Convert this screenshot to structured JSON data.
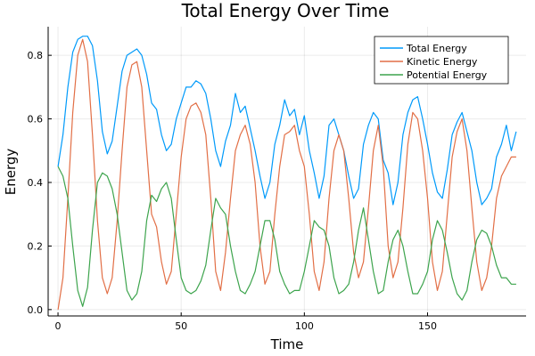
{
  "chart_data": {
    "type": "line",
    "title": "Total Energy Over Time",
    "xlabel": "Time",
    "ylabel": "Energy",
    "xlim": [
      -4,
      190
    ],
    "ylim": [
      -0.02,
      0.89
    ],
    "xticks": [
      0,
      50,
      100,
      150
    ],
    "yticks": [
      0.0,
      0.2,
      0.4,
      0.6,
      0.8
    ],
    "ytick_labels": [
      "0.0",
      "0.2",
      "0.4",
      "0.6",
      "0.8"
    ],
    "grid": true,
    "legend_position": "top-right",
    "x": [
      0,
      2,
      4,
      6,
      8,
      10,
      12,
      14,
      16,
      18,
      20,
      22,
      24,
      26,
      28,
      30,
      32,
      34,
      36,
      38,
      40,
      42,
      44,
      46,
      48,
      50,
      52,
      54,
      56,
      58,
      60,
      62,
      64,
      66,
      68,
      70,
      72,
      74,
      76,
      78,
      80,
      82,
      84,
      86,
      88,
      90,
      92,
      94,
      96,
      98,
      100,
      102,
      104,
      106,
      108,
      110,
      112,
      114,
      116,
      118,
      120,
      122,
      124,
      126,
      128,
      130,
      132,
      134,
      136,
      138,
      140,
      142,
      144,
      146,
      148,
      150,
      152,
      154,
      156,
      158,
      160,
      162,
      164,
      166,
      168,
      170,
      172,
      174,
      176,
      178,
      180,
      182,
      184,
      186
    ],
    "series": [
      {
        "name": "Total Energy",
        "color": "#009AFA",
        "values": [
          0.45,
          0.55,
          0.7,
          0.81,
          0.85,
          0.86,
          0.86,
          0.83,
          0.72,
          0.56,
          0.49,
          0.53,
          0.64,
          0.75,
          0.8,
          0.81,
          0.82,
          0.8,
          0.74,
          0.65,
          0.63,
          0.55,
          0.5,
          0.52,
          0.6,
          0.65,
          0.7,
          0.7,
          0.72,
          0.71,
          0.68,
          0.6,
          0.5,
          0.45,
          0.53,
          0.58,
          0.68,
          0.62,
          0.64,
          0.57,
          0.5,
          0.42,
          0.35,
          0.4,
          0.52,
          0.58,
          0.66,
          0.61,
          0.63,
          0.55,
          0.61,
          0.5,
          0.43,
          0.35,
          0.42,
          0.58,
          0.6,
          0.55,
          0.5,
          0.42,
          0.35,
          0.38,
          0.52,
          0.58,
          0.62,
          0.6,
          0.47,
          0.43,
          0.33,
          0.4,
          0.55,
          0.62,
          0.66,
          0.67,
          0.6,
          0.52,
          0.43,
          0.37,
          0.35,
          0.44,
          0.55,
          0.59,
          0.62,
          0.56,
          0.5,
          0.4,
          0.33,
          0.35,
          0.38,
          0.48,
          0.52,
          0.58,
          0.5,
          0.56
        ]
      },
      {
        "name": "Kinetic Energy",
        "color": "#E26F46",
        "values": [
          0.0,
          0.1,
          0.35,
          0.62,
          0.8,
          0.85,
          0.78,
          0.55,
          0.28,
          0.1,
          0.05,
          0.1,
          0.28,
          0.5,
          0.7,
          0.77,
          0.78,
          0.7,
          0.5,
          0.3,
          0.26,
          0.15,
          0.08,
          0.12,
          0.3,
          0.48,
          0.6,
          0.64,
          0.65,
          0.62,
          0.55,
          0.35,
          0.12,
          0.06,
          0.18,
          0.35,
          0.5,
          0.55,
          0.58,
          0.52,
          0.4,
          0.2,
          0.08,
          0.12,
          0.3,
          0.45,
          0.55,
          0.56,
          0.58,
          0.5,
          0.45,
          0.3,
          0.12,
          0.06,
          0.15,
          0.35,
          0.5,
          0.55,
          0.5,
          0.35,
          0.18,
          0.1,
          0.15,
          0.32,
          0.5,
          0.58,
          0.45,
          0.2,
          0.1,
          0.15,
          0.32,
          0.52,
          0.62,
          0.6,
          0.5,
          0.35,
          0.15,
          0.06,
          0.12,
          0.3,
          0.48,
          0.56,
          0.6,
          0.5,
          0.32,
          0.15,
          0.06,
          0.1,
          0.2,
          0.35,
          0.42,
          0.45,
          0.48,
          0.48
        ]
      },
      {
        "name": "Potential Energy",
        "color": "#3DA44D",
        "values": [
          0.45,
          0.42,
          0.35,
          0.2,
          0.06,
          0.01,
          0.07,
          0.25,
          0.4,
          0.43,
          0.42,
          0.38,
          0.3,
          0.18,
          0.06,
          0.03,
          0.05,
          0.12,
          0.28,
          0.36,
          0.34,
          0.38,
          0.4,
          0.35,
          0.22,
          0.1,
          0.06,
          0.05,
          0.06,
          0.09,
          0.14,
          0.25,
          0.35,
          0.32,
          0.3,
          0.2,
          0.12,
          0.06,
          0.05,
          0.08,
          0.12,
          0.2,
          0.28,
          0.28,
          0.22,
          0.12,
          0.08,
          0.05,
          0.06,
          0.06,
          0.12,
          0.2,
          0.28,
          0.26,
          0.25,
          0.2,
          0.1,
          0.05,
          0.06,
          0.08,
          0.15,
          0.25,
          0.32,
          0.22,
          0.12,
          0.05,
          0.06,
          0.15,
          0.22,
          0.25,
          0.2,
          0.12,
          0.05,
          0.05,
          0.08,
          0.12,
          0.22,
          0.28,
          0.25,
          0.18,
          0.1,
          0.05,
          0.03,
          0.06,
          0.15,
          0.22,
          0.25,
          0.24,
          0.2,
          0.14,
          0.1,
          0.1,
          0.08,
          0.08
        ]
      }
    ]
  }
}
